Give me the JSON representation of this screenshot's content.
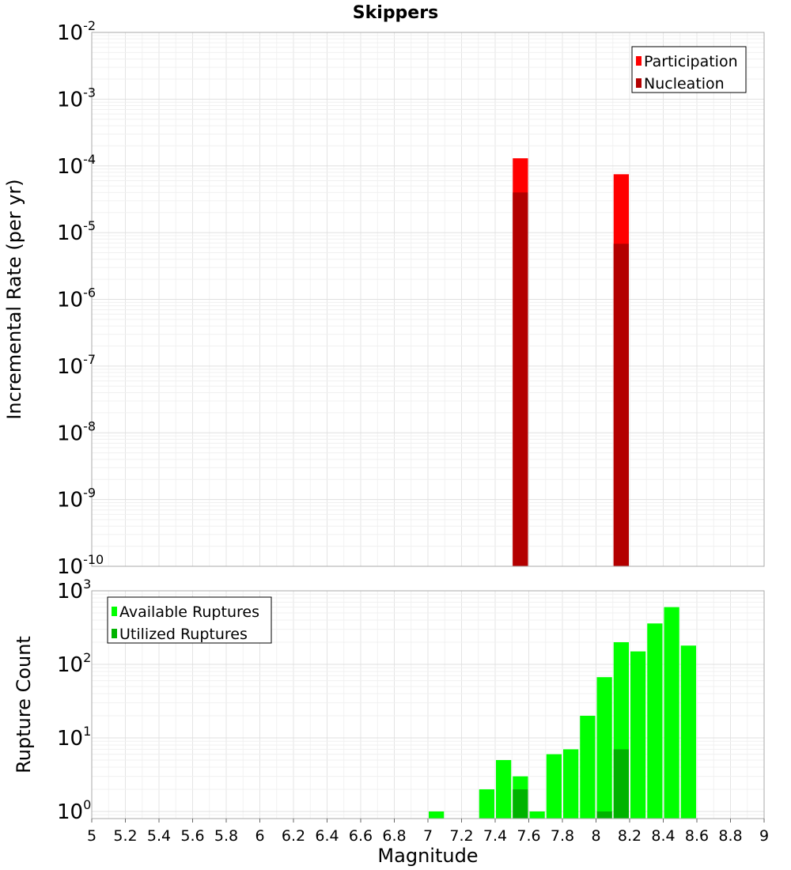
{
  "chart_data": [
    {
      "type": "bar",
      "title": "Skippers",
      "xlabel": "",
      "ylabel": "Incremental Rate (per yr)",
      "xlim": [
        5,
        9
      ],
      "ylim": [
        1e-10,
        0.01
      ],
      "yscale": "log",
      "grid": true,
      "legend_position": "top-right",
      "bin_width": 0.1,
      "x_ticks": [
        "5",
        "5.2",
        "5.4",
        "5.6",
        "5.8",
        "6",
        "6.2",
        "6.4",
        "6.6",
        "6.8",
        "7",
        "7.2",
        "7.4",
        "7.6",
        "7.8",
        "8",
        "8.2",
        "8.4",
        "8.6",
        "8.8",
        "9"
      ],
      "y_ticks": [
        {
          "base": "10",
          "exp": "-2"
        },
        {
          "base": "10",
          "exp": "-3"
        },
        {
          "base": "10",
          "exp": "-4"
        },
        {
          "base": "10",
          "exp": "-5"
        },
        {
          "base": "10",
          "exp": "-6"
        },
        {
          "base": "10",
          "exp": "-7"
        },
        {
          "base": "10",
          "exp": "-8"
        },
        {
          "base": "10",
          "exp": "-9"
        },
        {
          "base": "10",
          "exp": "-10"
        }
      ],
      "series": [
        {
          "name": "Participation",
          "color": "#ff0000",
          "x": [
            7.55,
            8.15
          ],
          "values": [
            0.00013,
            7.5e-05
          ]
        },
        {
          "name": "Nucleation",
          "color": "#b30000",
          "x": [
            7.55,
            8.15
          ],
          "values": [
            4e-05,
            6.8e-06
          ]
        }
      ]
    },
    {
      "type": "bar",
      "title": "",
      "xlabel": "Magnitude",
      "ylabel": "Rupture Count",
      "xlim": [
        5,
        9
      ],
      "ylim": [
        0.8,
        1000
      ],
      "yscale": "log",
      "grid": true,
      "legend_position": "top-left",
      "bin_width": 0.1,
      "x_ticks": [
        "5",
        "5.2",
        "5.4",
        "5.6",
        "5.8",
        "6",
        "6.2",
        "6.4",
        "6.6",
        "6.8",
        "7",
        "7.2",
        "7.4",
        "7.6",
        "7.8",
        "8",
        "8.2",
        "8.4",
        "8.6",
        "8.8",
        "9"
      ],
      "y_ticks": [
        {
          "base": "10",
          "exp": "3"
        },
        {
          "base": "10",
          "exp": "2"
        },
        {
          "base": "10",
          "exp": "1"
        },
        {
          "base": "10",
          "exp": "0"
        }
      ],
      "series": [
        {
          "name": "Available Ruptures",
          "color": "#00ff00",
          "x": [
            7.05,
            7.35,
            7.45,
            7.55,
            7.65,
            7.75,
            7.85,
            7.95,
            8.05,
            8.15,
            8.25,
            8.35,
            8.45,
            8.55
          ],
          "values": [
            1,
            2,
            5,
            3,
            1,
            6,
            7,
            20,
            67,
            200,
            150,
            360,
            600,
            180
          ]
        },
        {
          "name": "Utilized Ruptures",
          "color": "#00b300",
          "x": [
            7.55,
            8.05,
            8.15
          ],
          "values": [
            2,
            1,
            7
          ]
        }
      ]
    }
  ]
}
